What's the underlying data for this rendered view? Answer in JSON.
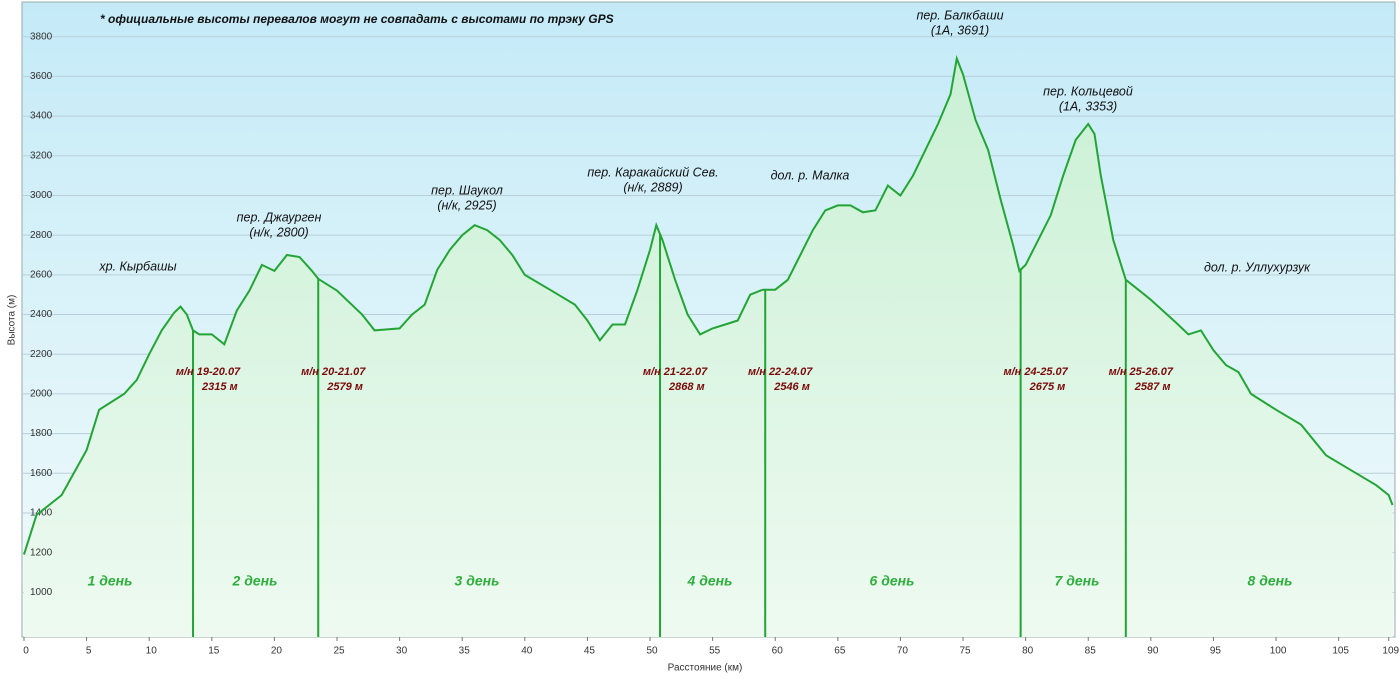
{
  "chart_data": {
    "type": "line",
    "note": "* официальные высоты  перевалов могут не совпадать с высотами по трэку GPS",
    "x_label": "Расстояние  (км)",
    "y_label": "Высота (м)",
    "x": [
      0,
      1,
      3,
      5,
      6,
      8,
      9,
      10,
      11,
      12,
      12.5,
      13,
      13.5,
      14,
      15,
      16,
      17,
      18,
      19,
      20,
      21,
      22,
      23,
      23.5,
      25,
      27,
      28,
      30,
      31,
      32,
      33,
      34,
      35,
      36,
      37,
      38,
      39,
      40,
      42,
      44,
      45,
      46,
      47,
      48,
      49,
      50,
      50.5,
      51,
      52,
      53,
      54,
      55,
      56,
      57,
      58,
      59,
      60,
      61,
      62,
      63,
      64,
      65,
      66,
      67,
      68,
      69,
      70,
      71,
      72,
      73,
      74,
      74.5,
      75,
      76,
      77,
      78,
      79,
      79.5,
      80,
      81,
      82,
      83,
      84,
      85,
      85.5,
      86,
      87,
      88,
      89,
      90,
      92,
      93,
      94,
      95,
      96,
      97,
      98,
      100,
      102,
      104,
      106,
      108,
      109,
      109.3
    ],
    "values": [
      1190,
      1390,
      1490,
      1717,
      1920,
      2000,
      2070,
      2200,
      2320,
      2410,
      2440,
      2400,
      2320,
      2300,
      2300,
      2250,
      2420,
      2520,
      2650,
      2620,
      2700,
      2690,
      2620,
      2580,
      2520,
      2400,
      2320,
      2330,
      2400,
      2450,
      2625,
      2725,
      2800,
      2850,
      2825,
      2775,
      2700,
      2600,
      2525,
      2450,
      2370,
      2270,
      2350,
      2350,
      2525,
      2725,
      2850,
      2775,
      2575,
      2400,
      2300,
      2330,
      2350,
      2370,
      2500,
      2525,
      2525,
      2575,
      2700,
      2825,
      2925,
      2950,
      2950,
      2915,
      2925,
      3050,
      3000,
      3100,
      3230,
      3360,
      3510,
      3690,
      3610,
      3380,
      3230,
      2980,
      2750,
      2620,
      2650,
      2775,
      2900,
      3100,
      3280,
      3360,
      3310,
      3100,
      2775,
      2575,
      2525,
      2475,
      2360,
      2300,
      2320,
      2220,
      2145,
      2110,
      2000,
      1920,
      1845,
      1690,
      1615,
      1540,
      1490,
      1440
    ],
    "color": "#22a535",
    "xlim": [
      0,
      109.5
    ],
    "ylim": [
      775,
      3975
    ],
    "xticks": [
      0,
      5,
      10,
      15,
      20,
      25,
      30,
      35,
      40,
      45,
      50,
      55,
      60,
      65,
      70,
      75,
      80,
      85,
      90,
      95,
      100,
      105,
      109
    ],
    "yticks": [
      1000,
      1200,
      1400,
      1600,
      1800,
      2000,
      2200,
      2400,
      2600,
      2800,
      3000,
      3200,
      3400,
      3600,
      3800
    ],
    "grid": true,
    "annotations": [
      [
        "хр. Кырбашы"
      ],
      [
        "пер. Джаурген",
        "(н/к, 2800)"
      ],
      [
        "пер. Шаукол",
        "(н/к, 2925)"
      ],
      [
        "пер. Каракайский Сев.",
        "(н/к, 2889)"
      ],
      [
        "дол. р. Малка"
      ],
      [
        "пер. Балкбаши",
        "(1А, 3691)"
      ],
      [
        "пер. Кольцевой",
        "(1А, 3353)"
      ],
      [
        "дол. р. Уллухурзук"
      ]
    ],
    "camps": [
      {
        "km": 13.5,
        "label": "м/н 19-20.07",
        "elevation": "2315 м"
      },
      {
        "km": 23.5,
        "label": "м/н 20-21.07",
        "elevation": "2579 м"
      },
      {
        "km": 50.8,
        "label": "м/н 21-22.07",
        "elevation": "2868 м"
      },
      {
        "km": 59.2,
        "label": "м/н 22-24.07",
        "elevation": "2546 м"
      },
      {
        "km": 79.6,
        "label": "м/н 24-25.07",
        "elevation": "2675 м"
      },
      {
        "km": 88,
        "label": "м/н 25-26.07",
        "elevation": "2587 м"
      }
    ],
    "days": [
      "1 день",
      "2 день",
      "3 день",
      "4 день",
      "6 день",
      "7 день",
      "8 день"
    ]
  }
}
